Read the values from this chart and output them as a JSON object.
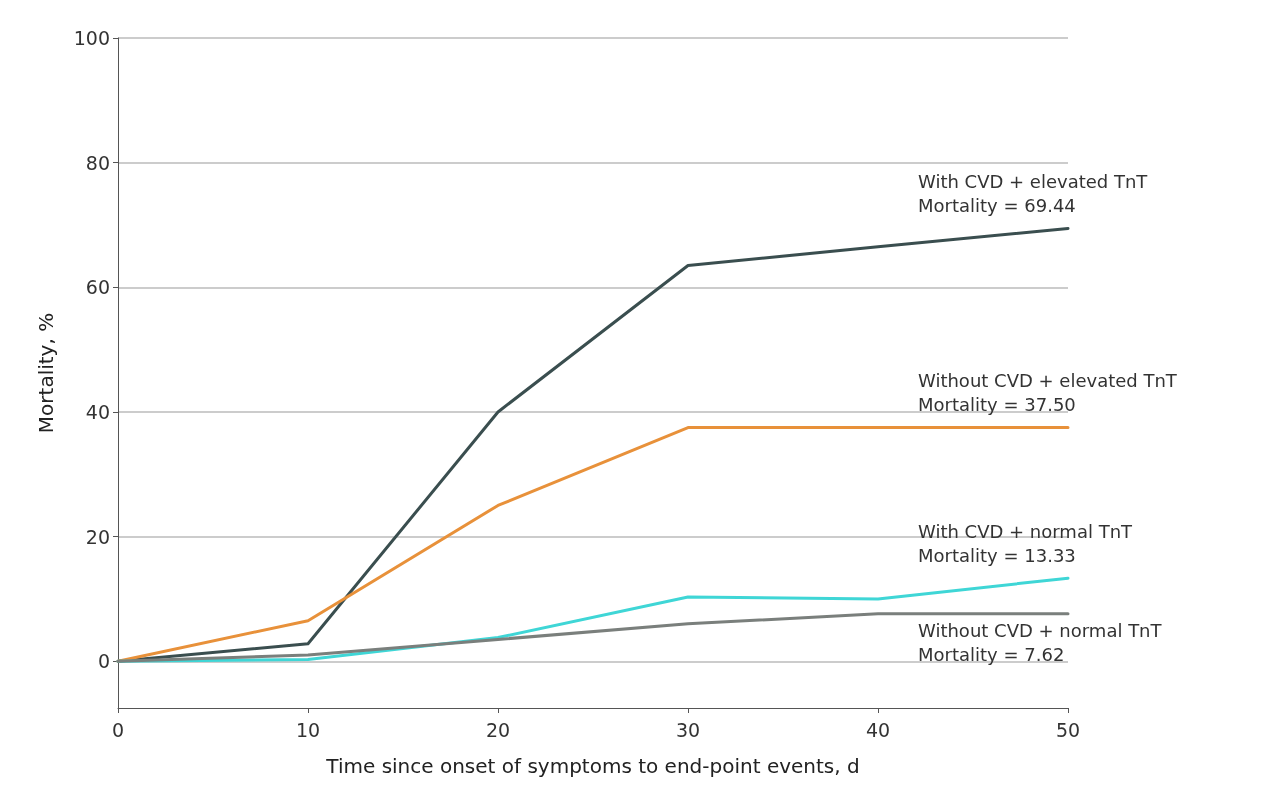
{
  "chart_data": {
    "type": "line",
    "xlabel": "Time since onset of symptoms to end-point events, d",
    "ylabel": "Mortality, %",
    "x": [
      0,
      10,
      20,
      30,
      40,
      50
    ],
    "series": [
      {
        "name": "With CVD + elevated TnT",
        "color": "#3a4e4f",
        "values": [
          0,
          2.8,
          40,
          63.5,
          66.5,
          69.44
        ]
      },
      {
        "name": "Without CVD + elevated TnT",
        "color": "#e8913a",
        "values": [
          0,
          6.5,
          25,
          37.5,
          37.5,
          37.5
        ]
      },
      {
        "name": "With CVD + normal TnT",
        "color": "#3fd6d6",
        "values": [
          0,
          0.3,
          3.8,
          10.3,
          10,
          13.33
        ]
      },
      {
        "name": "Without CVD + normal TnT",
        "color": "#7a7f7c",
        "values": [
          0,
          1,
          3.5,
          6,
          7.62,
          7.62
        ]
      }
    ],
    "annotations": [
      "Mortality = 69.44",
      "Mortality = 37.50",
      "Mortality = 13.33",
      "Mortality = 7.62"
    ],
    "xlim": [
      0,
      50
    ],
    "xticks": [
      0,
      10,
      20,
      30,
      40,
      50
    ],
    "ylim": [
      -7.5,
      100
    ],
    "yticks": [
      0,
      20,
      40,
      60,
      80,
      100
    ],
    "grid": "y",
    "legend": false,
    "marker": "none",
    "line_style": "solid"
  }
}
